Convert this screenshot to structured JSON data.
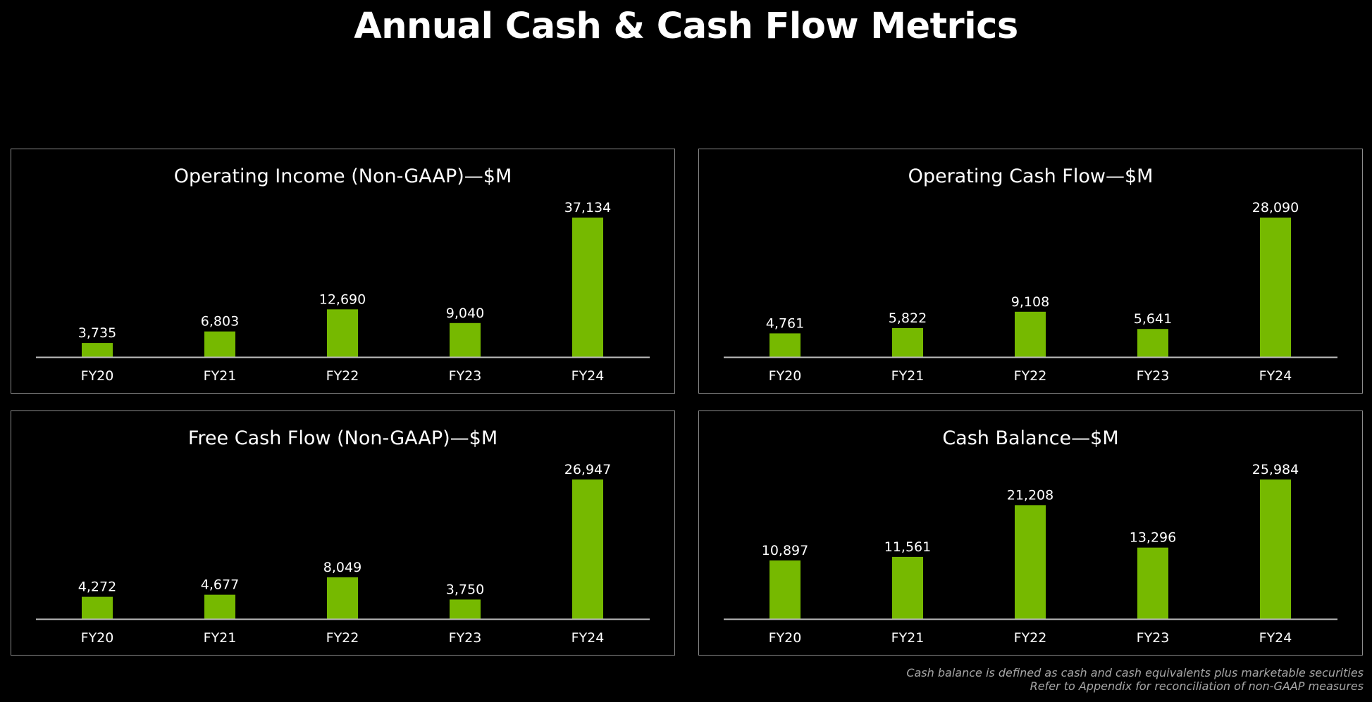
{
  "page": {
    "title": "Annual Cash & Cash Flow Metrics"
  },
  "colors": {
    "background": "#000000",
    "bar": "#76b900",
    "panel_border": "#8c8c8c",
    "axis": "#bfbfbf",
    "text": "#ffffff",
    "footnote": "#a6a6a6"
  },
  "chart_data": [
    {
      "type": "bar",
      "title": "Operating Income (Non-GAAP)—$M",
      "categories": [
        "FY20",
        "FY21",
        "FY22",
        "FY23",
        "FY24"
      ],
      "values": [
        3735,
        6803,
        12690,
        9040,
        37134
      ],
      "value_labels": [
        "3,735",
        "6,803",
        "12,690",
        "9,040",
        "37,134"
      ],
      "xlabel": "",
      "ylabel": "",
      "ylim": [
        0,
        37134
      ],
      "grid": false,
      "legend": "none"
    },
    {
      "type": "bar",
      "title": "Operating Cash Flow—$M",
      "categories": [
        "FY20",
        "FY21",
        "FY22",
        "FY23",
        "FY24"
      ],
      "values": [
        4761,
        5822,
        9108,
        5641,
        28090
      ],
      "value_labels": [
        "4,761",
        "5,822",
        "9,108",
        "5,641",
        "28,090"
      ],
      "xlabel": "",
      "ylabel": "",
      "ylim": [
        0,
        28090
      ],
      "grid": false,
      "legend": "none"
    },
    {
      "type": "bar",
      "title": "Free Cash Flow (Non-GAAP)—$M",
      "categories": [
        "FY20",
        "FY21",
        "FY22",
        "FY23",
        "FY24"
      ],
      "values": [
        4272,
        4677,
        8049,
        3750,
        26947
      ],
      "value_labels": [
        "4,272",
        "4,677",
        "8,049",
        "3,750",
        "26,947"
      ],
      "xlabel": "",
      "ylabel": "",
      "ylim": [
        0,
        26947
      ],
      "grid": false,
      "legend": "none"
    },
    {
      "type": "bar",
      "title": "Cash Balance—$M",
      "categories": [
        "FY20",
        "FY21",
        "FY22",
        "FY23",
        "FY24"
      ],
      "values": [
        10897,
        11561,
        21208,
        13296,
        25984
      ],
      "value_labels": [
        "10,897",
        "11,561",
        "21,208",
        "13,296",
        "25,984"
      ],
      "xlabel": "",
      "ylabel": "",
      "ylim": [
        0,
        25984
      ],
      "grid": false,
      "legend": "none"
    }
  ],
  "footnotes": {
    "line1": "Cash balance is defined as cash and cash equivalents plus marketable securities",
    "line2": "Refer to Appendix for reconciliation of non-GAAP measures"
  }
}
